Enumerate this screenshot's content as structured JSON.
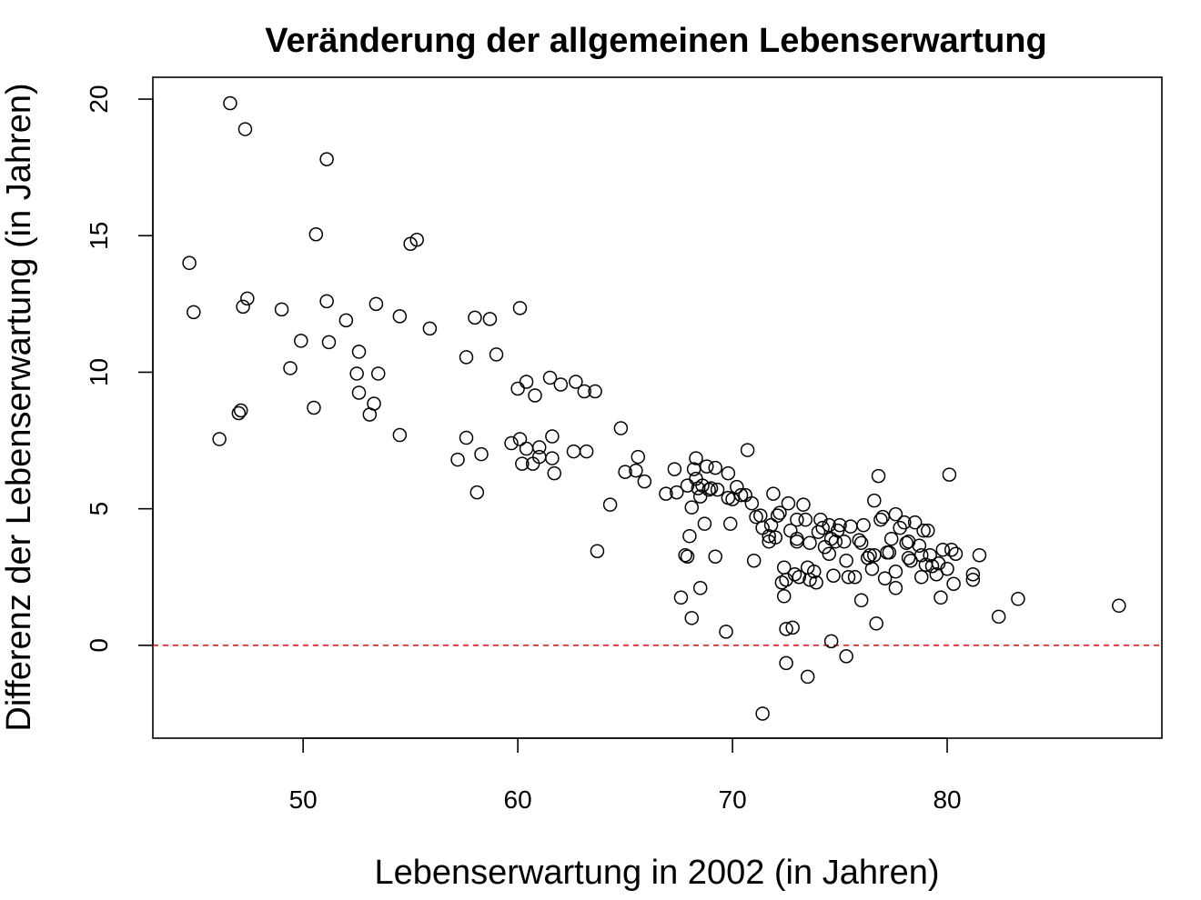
{
  "chart_data": {
    "type": "scatter",
    "title": "Veränderung der allgemeinen Lebenserwartung",
    "xlabel": "Lebenserwartung in 2002 (in Jahren)",
    "ylabel": "Differenz der Lebenserwartung (in Jahren)",
    "xlim": [
      43,
      90
    ],
    "ylim": [
      -3.4,
      20.8
    ],
    "x_ticks": [
      50,
      60,
      70,
      80
    ],
    "y_ticks": [
      0,
      5,
      10,
      15,
      20
    ],
    "grid": false,
    "reference_line": {
      "y": 0,
      "color": "#e41a1c",
      "style": "dashed"
    },
    "marker_color": "#000000",
    "points": [
      [
        44.7,
        14.0
      ],
      [
        44.9,
        12.2
      ],
      [
        46.1,
        7.55
      ],
      [
        46.6,
        19.85
      ],
      [
        47.0,
        8.5
      ],
      [
        47.1,
        8.6
      ],
      [
        47.2,
        12.4
      ],
      [
        47.3,
        18.9
      ],
      [
        47.4,
        12.7
      ],
      [
        49.0,
        12.3
      ],
      [
        49.4,
        10.15
      ],
      [
        49.9,
        11.15
      ],
      [
        50.5,
        8.7
      ],
      [
        50.6,
        15.05
      ],
      [
        51.1,
        12.6
      ],
      [
        51.1,
        17.8
      ],
      [
        51.2,
        11.1
      ],
      [
        52.0,
        11.9
      ],
      [
        52.5,
        9.95
      ],
      [
        52.6,
        10.75
      ],
      [
        52.6,
        9.25
      ],
      [
        53.1,
        8.45
      ],
      [
        53.3,
        8.85
      ],
      [
        53.4,
        12.5
      ],
      [
        53.5,
        9.95
      ],
      [
        54.5,
        12.05
      ],
      [
        54.5,
        7.7
      ],
      [
        55.0,
        14.7
      ],
      [
        55.3,
        14.85
      ],
      [
        55.9,
        11.6
      ],
      [
        57.2,
        6.8
      ],
      [
        57.6,
        10.55
      ],
      [
        57.6,
        7.6
      ],
      [
        58.0,
        12.0
      ],
      [
        58.1,
        5.6
      ],
      [
        58.3,
        7.0
      ],
      [
        58.7,
        11.95
      ],
      [
        59.0,
        10.65
      ],
      [
        59.7,
        7.4
      ],
      [
        60.0,
        9.4
      ],
      [
        60.1,
        12.35
      ],
      [
        60.1,
        7.55
      ],
      [
        60.2,
        6.65
      ],
      [
        60.4,
        9.65
      ],
      [
        60.4,
        7.2
      ],
      [
        60.7,
        6.65
      ],
      [
        60.8,
        9.15
      ],
      [
        61.0,
        7.25
      ],
      [
        61.0,
        6.9
      ],
      [
        61.5,
        9.8
      ],
      [
        61.6,
        7.65
      ],
      [
        61.6,
        6.85
      ],
      [
        61.7,
        6.3
      ],
      [
        62.0,
        9.55
      ],
      [
        62.6,
        7.1
      ],
      [
        62.7,
        9.65
      ],
      [
        63.1,
        9.3
      ],
      [
        63.2,
        7.1
      ],
      [
        63.6,
        9.3
      ],
      [
        63.7,
        3.45
      ],
      [
        64.3,
        5.15
      ],
      [
        64.8,
        7.95
      ],
      [
        65.0,
        6.35
      ],
      [
        65.5,
        6.4
      ],
      [
        65.6,
        6.9
      ],
      [
        65.9,
        6.0
      ],
      [
        66.9,
        5.55
      ],
      [
        67.3,
        6.45
      ],
      [
        67.4,
        5.6
      ],
      [
        67.6,
        1.75
      ],
      [
        67.8,
        3.3
      ],
      [
        67.9,
        5.85
      ],
      [
        67.9,
        3.25
      ],
      [
        68.0,
        4.0
      ],
      [
        68.1,
        1.0
      ],
      [
        68.1,
        5.05
      ],
      [
        68.2,
        6.45
      ],
      [
        68.3,
        6.85
      ],
      [
        68.3,
        6.1
      ],
      [
        68.4,
        5.75
      ],
      [
        68.5,
        5.45
      ],
      [
        68.5,
        2.1
      ],
      [
        68.6,
        5.85
      ],
      [
        68.7,
        4.45
      ],
      [
        68.8,
        6.55
      ],
      [
        68.9,
        5.7
      ],
      [
        69.0,
        5.75
      ],
      [
        69.2,
        6.5
      ],
      [
        69.2,
        3.25
      ],
      [
        69.3,
        5.7
      ],
      [
        69.7,
        0.5
      ],
      [
        69.8,
        6.3
      ],
      [
        69.8,
        5.4
      ],
      [
        69.9,
        4.45
      ],
      [
        70.0,
        5.35
      ],
      [
        70.2,
        5.8
      ],
      [
        70.4,
        5.5
      ],
      [
        70.6,
        5.5
      ],
      [
        70.7,
        7.15
      ],
      [
        70.9,
        5.2
      ],
      [
        71.0,
        3.1
      ],
      [
        71.1,
        4.7
      ],
      [
        71.3,
        4.75
      ],
      [
        71.4,
        4.3
      ],
      [
        71.4,
        -2.5
      ],
      [
        71.7,
        3.8
      ],
      [
        71.7,
        4.0
      ],
      [
        71.8,
        4.4
      ],
      [
        71.9,
        5.55
      ],
      [
        72.0,
        3.95
      ],
      [
        72.1,
        4.75
      ],
      [
        72.2,
        4.85
      ],
      [
        72.3,
        2.3
      ],
      [
        72.4,
        2.85
      ],
      [
        72.4,
        1.8
      ],
      [
        72.5,
        2.4
      ],
      [
        72.5,
        0.6
      ],
      [
        72.5,
        -0.65
      ],
      [
        72.6,
        5.2
      ],
      [
        72.7,
        4.2
      ],
      [
        72.8,
        0.65
      ],
      [
        72.9,
        2.6
      ],
      [
        73.0,
        3.9
      ],
      [
        73.0,
        4.6
      ],
      [
        73.0,
        3.8
      ],
      [
        73.1,
        2.5
      ],
      [
        73.3,
        5.15
      ],
      [
        73.4,
        4.6
      ],
      [
        73.5,
        -1.15
      ],
      [
        73.5,
        2.85
      ],
      [
        73.6,
        2.4
      ],
      [
        73.6,
        3.75
      ],
      [
        73.8,
        2.7
      ],
      [
        73.9,
        2.3
      ],
      [
        74.0,
        4.15
      ],
      [
        74.1,
        4.6
      ],
      [
        74.2,
        4.3
      ],
      [
        74.3,
        3.6
      ],
      [
        74.5,
        3.35
      ],
      [
        74.5,
        4.4
      ],
      [
        74.6,
        3.9
      ],
      [
        74.6,
        0.15
      ],
      [
        74.7,
        2.55
      ],
      [
        74.8,
        3.8
      ],
      [
        74.9,
        4.2
      ],
      [
        75.0,
        4.4
      ],
      [
        75.2,
        3.8
      ],
      [
        75.3,
        3.1
      ],
      [
        75.3,
        -0.4
      ],
      [
        75.4,
        2.5
      ],
      [
        75.5,
        4.35
      ],
      [
        75.7,
        2.5
      ],
      [
        75.9,
        3.85
      ],
      [
        76.0,
        1.65
      ],
      [
        76.0,
        3.75
      ],
      [
        76.1,
        4.4
      ],
      [
        76.3,
        3.2
      ],
      [
        76.4,
        3.3
      ],
      [
        76.5,
        2.8
      ],
      [
        76.6,
        5.3
      ],
      [
        76.6,
        3.3
      ],
      [
        76.7,
        0.8
      ],
      [
        76.8,
        6.2
      ],
      [
        76.9,
        4.6
      ],
      [
        77.0,
        4.7
      ],
      [
        77.1,
        2.45
      ],
      [
        77.2,
        3.4
      ],
      [
        77.3,
        3.4
      ],
      [
        77.4,
        3.9
      ],
      [
        77.6,
        4.8
      ],
      [
        77.6,
        2.7
      ],
      [
        77.6,
        2.1
      ],
      [
        77.8,
        4.3
      ],
      [
        78.0,
        4.5
      ],
      [
        78.1,
        3.75
      ],
      [
        78.2,
        3.8
      ],
      [
        78.2,
        3.2
      ],
      [
        78.3,
        3.1
      ],
      [
        78.5,
        4.5
      ],
      [
        78.7,
        3.65
      ],
      [
        78.8,
        3.3
      ],
      [
        78.8,
        2.5
      ],
      [
        78.9,
        4.2
      ],
      [
        79.0,
        2.95
      ],
      [
        79.1,
        4.2
      ],
      [
        79.2,
        3.3
      ],
      [
        79.3,
        2.9
      ],
      [
        79.5,
        2.6
      ],
      [
        79.6,
        3.0
      ],
      [
        79.7,
        1.75
      ],
      [
        79.8,
        3.5
      ],
      [
        80.0,
        2.8
      ],
      [
        80.1,
        6.25
      ],
      [
        80.2,
        3.5
      ],
      [
        80.3,
        2.25
      ],
      [
        80.4,
        3.35
      ],
      [
        81.2,
        2.6
      ],
      [
        81.2,
        2.4
      ],
      [
        81.5,
        3.3
      ],
      [
        82.4,
        1.05
      ],
      [
        83.3,
        1.7
      ],
      [
        88.0,
        1.45
      ]
    ]
  }
}
